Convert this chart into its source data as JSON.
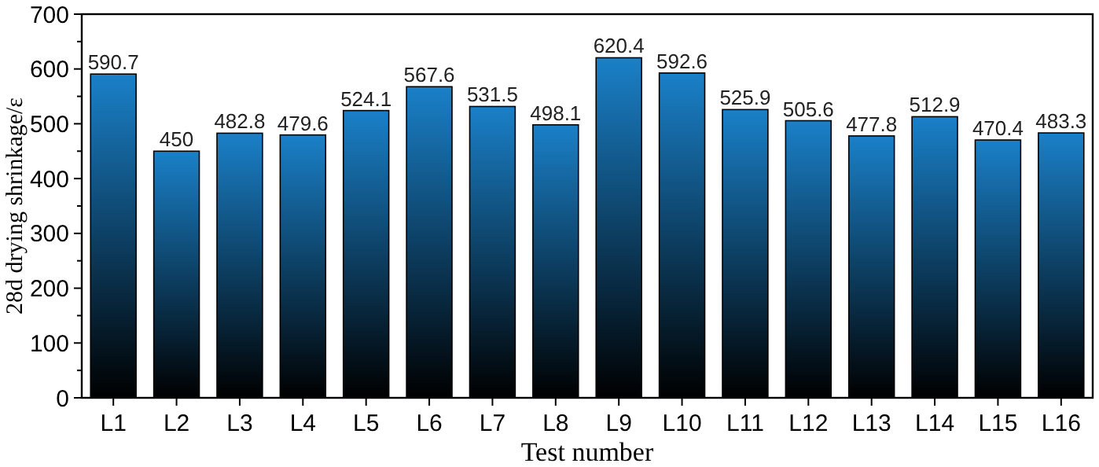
{
  "chart_data": {
    "type": "bar",
    "xlabel": "Test number",
    "ylabel": "28d drying shrinkage/ε",
    "categories": [
      "L1",
      "L2",
      "L3",
      "L4",
      "L5",
      "L6",
      "L7",
      "L8",
      "L9",
      "L10",
      "L11",
      "L12",
      "L13",
      "L14",
      "L15",
      "L16"
    ],
    "values": [
      590.7,
      450,
      482.8,
      479.6,
      524.1,
      567.6,
      531.5,
      498.1,
      620.4,
      592.6,
      525.9,
      505.6,
      477.8,
      512.9,
      470.4,
      483.3
    ],
    "color": "#1a80c8",
    "ylim": [
      0,
      700
    ],
    "yticks": [
      0,
      {
        "value": 50,
        "label": null
      },
      100,
      {
        "value": 150,
        "label": null
      },
      200,
      {
        "value": 250,
        "label": null
      },
      300,
      {
        "value": 350,
        "label": null
      },
      400,
      {
        "value": 450,
        "label": null
      },
      500,
      {
        "value": 550,
        "label": null
      },
      600,
      {
        "value": 650,
        "label": null
      },
      700
    ],
    "data_labels": true,
    "grid": false
  }
}
